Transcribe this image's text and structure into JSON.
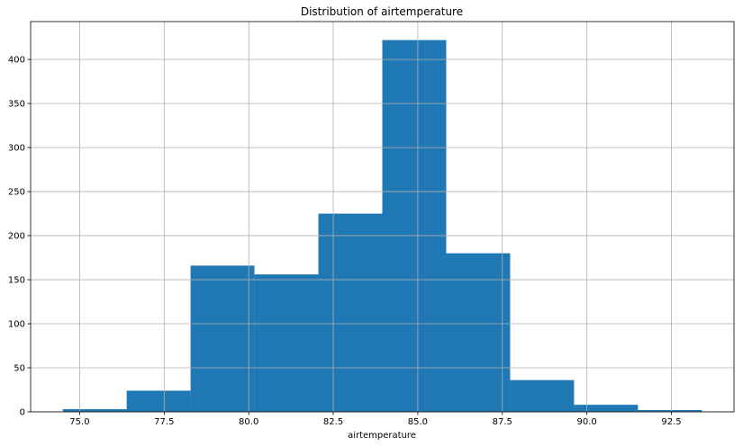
{
  "chart_data": {
    "type": "bar",
    "title": "Distribution of airtemperature",
    "xlabel": "airtemperature",
    "ylabel": "",
    "bin_edges": [
      74.5,
      76.39,
      78.28,
      80.17,
      82.06,
      83.95,
      85.84,
      87.73,
      89.62,
      91.51,
      93.4
    ],
    "counts": [
      3,
      24,
      166,
      156,
      225,
      422,
      180,
      36,
      8,
      2
    ],
    "xlim": [
      73.55,
      94.35
    ],
    "ylim": [
      0,
      443
    ],
    "xticks": [
      75.0,
      77.5,
      80.0,
      82.5,
      85.0,
      87.5,
      90.0,
      92.5
    ],
    "xtick_labels": [
      "75.0",
      "77.5",
      "80.0",
      "82.5",
      "85.0",
      "87.5",
      "90.0",
      "92.5"
    ],
    "yticks": [
      0,
      50,
      100,
      150,
      200,
      250,
      300,
      350,
      400
    ],
    "ytick_labels": [
      "0",
      "50",
      "100",
      "150",
      "200",
      "250",
      "300",
      "350",
      "400"
    ],
    "grid": true,
    "colors": {
      "bar": "#1f77b4",
      "grid": "#b0b0b0",
      "axis": "#000000"
    }
  }
}
